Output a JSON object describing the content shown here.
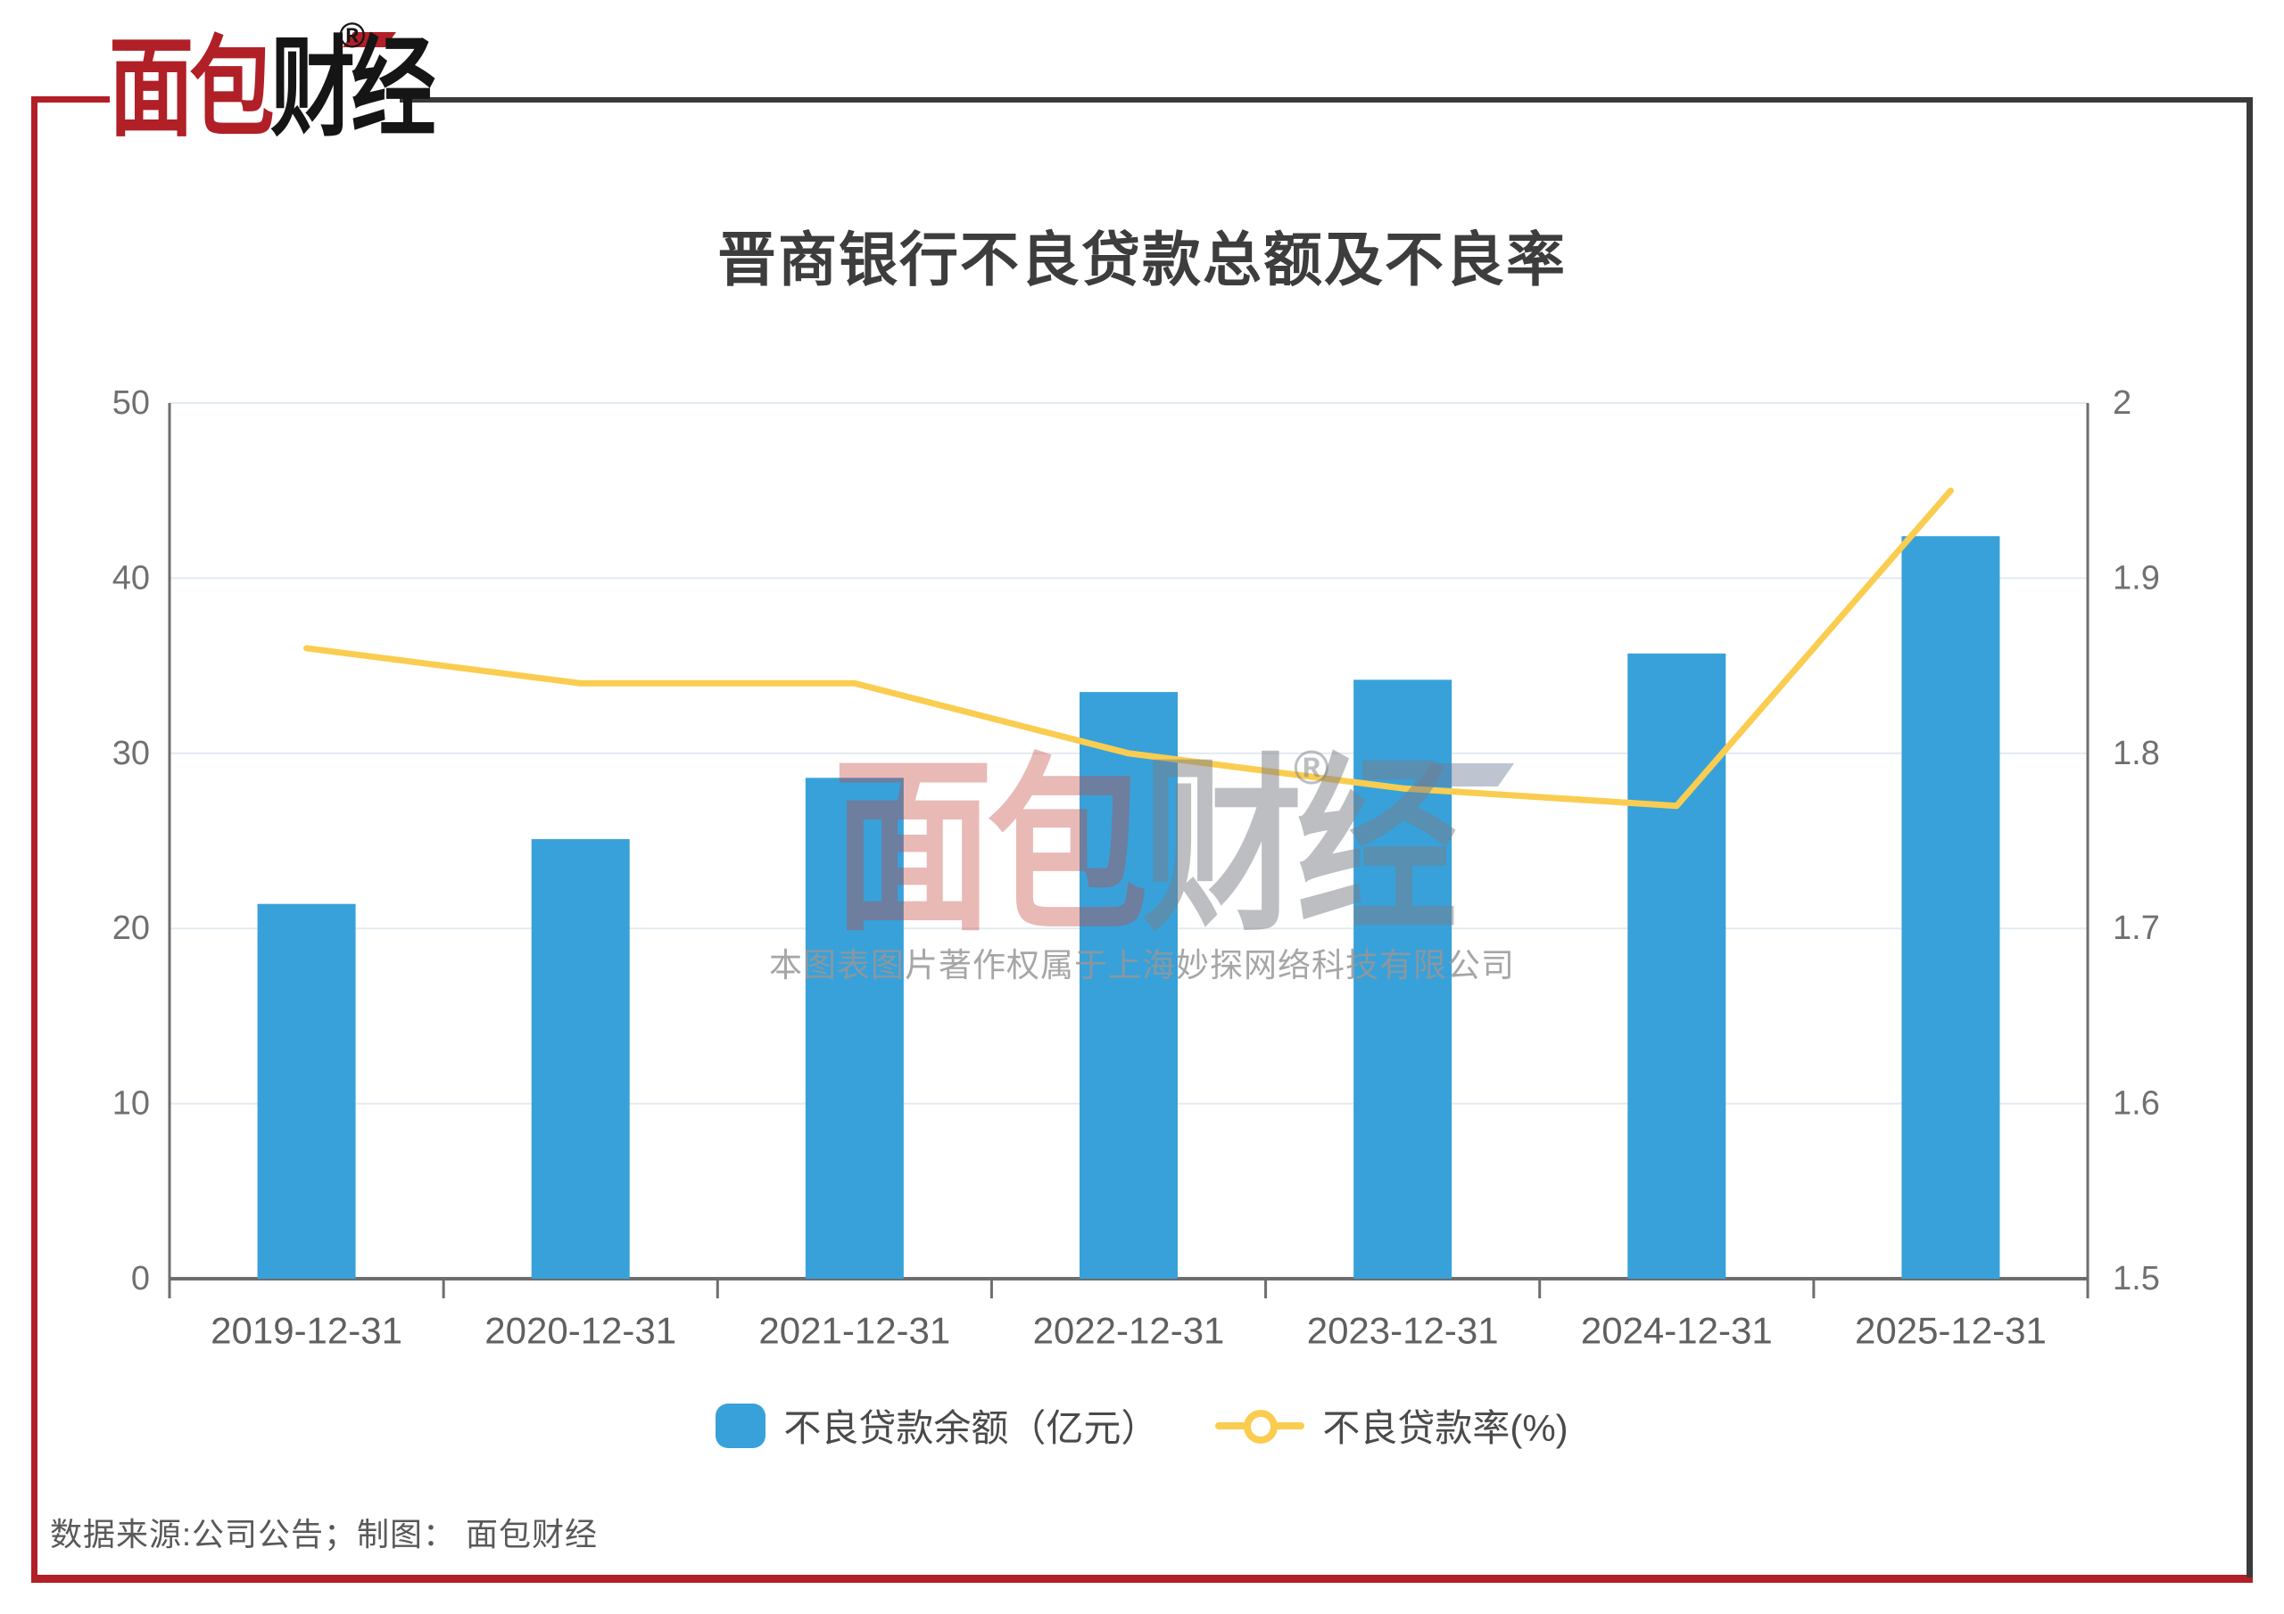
{
  "brand": {
    "logo_first": "面包",
    "logo_second": "财经",
    "registered_mark": "®"
  },
  "title": "晋商银行不良贷款总额及不良率",
  "chart_data": {
    "type": "bar",
    "categories": [
      "2019-12-31",
      "2020-12-31",
      "2021-12-31",
      "2022-12-31",
      "2023-12-31",
      "2024-12-31",
      "2025-12-31"
    ],
    "series": [
      {
        "name": "不良贷款余额（亿元）",
        "type": "bar",
        "y_axis": "left",
        "values": [
          21.4,
          25.1,
          28.6,
          33.5,
          34.2,
          35.7,
          42.4
        ],
        "color": "#38A1DA"
      },
      {
        "name": "不良贷款率(%)",
        "type": "line",
        "y_axis": "right",
        "values": [
          1.86,
          1.84,
          1.84,
          1.8,
          1.78,
          1.77,
          1.95
        ],
        "color": "#FACD50"
      }
    ],
    "left_axis": {
      "min": 0,
      "max": 50,
      "ticks": [
        0,
        10,
        20,
        30,
        40,
        50
      ]
    },
    "right_axis": {
      "min": 1.5,
      "max": 2,
      "ticks": [
        1.5,
        1.6,
        1.7,
        1.8,
        1.9,
        2
      ]
    },
    "grid": true,
    "legend_position": "bottom"
  },
  "watermark": {
    "logo_first": "面包",
    "logo_second": "财经",
    "registered_mark": "®",
    "caption": "本图表图片著作权属于上海妙探网络科技有限公司"
  },
  "footer": {
    "source_text": "数据来源:公司公告；制图： 面包财经"
  },
  "colors": {
    "bar": "#38A1DA",
    "line": "#FACD50",
    "frame_red": "#B11F27",
    "frame_dark": "#3A3A3A",
    "grid": "#E4EAF2",
    "axis": "#6E6E6E",
    "title": "#3D3D3D",
    "tick_text": "#707070",
    "x_label_text": "#606060",
    "footer_text": "#595959",
    "logo_red": "#B11F27",
    "logo_black": "#151515",
    "watermark_red": "rgba(196,70,64,0.38)",
    "watermark_gray": "rgba(122,126,134,0.50)",
    "watermark_text": "rgba(150,150,150,0.85)"
  }
}
